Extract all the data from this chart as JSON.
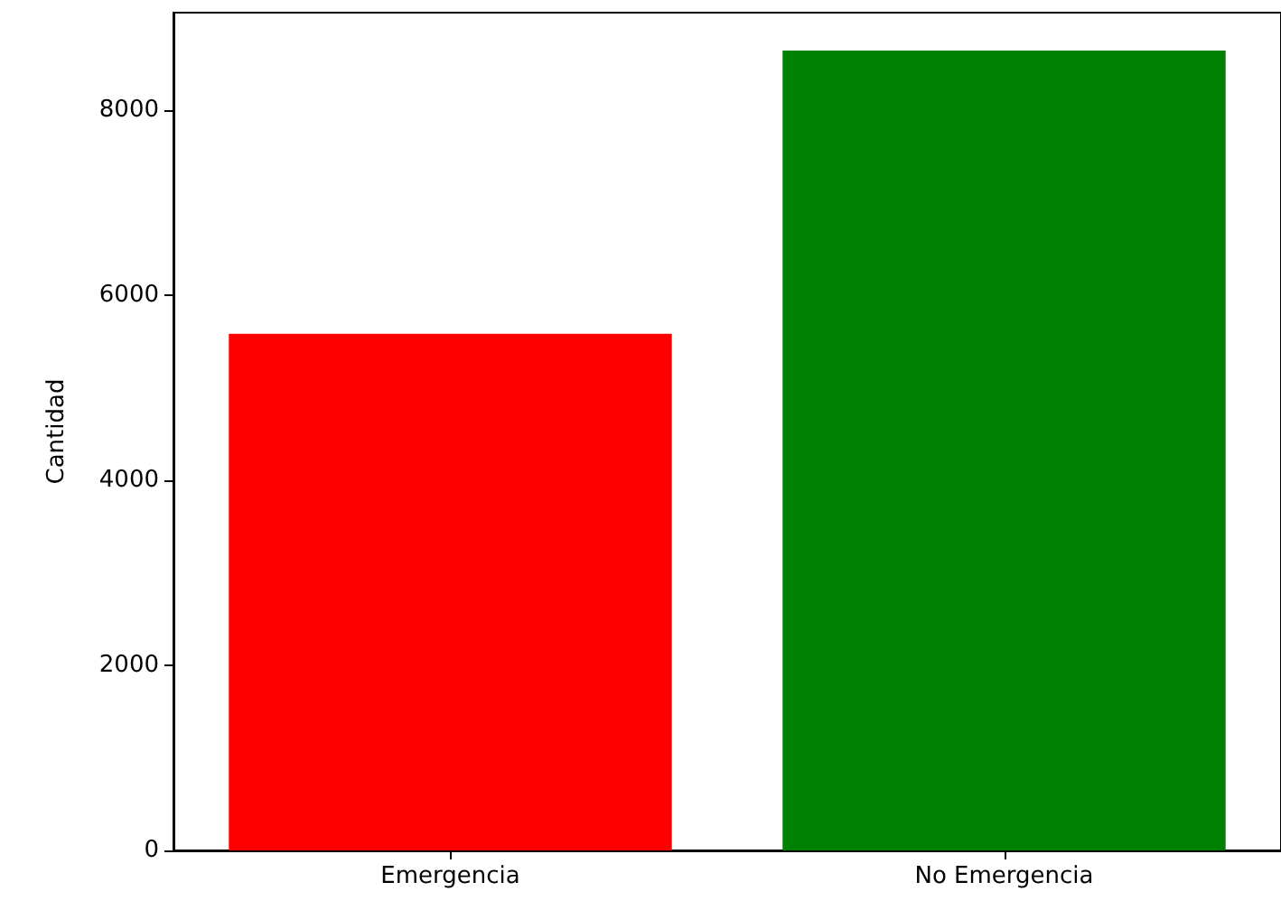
{
  "chart_data": {
    "type": "bar",
    "ylabel": "Cantidad",
    "categories": [
      "Emergencia",
      "No Emergencia"
    ],
    "values": [
      5580,
      8640
    ],
    "colors": [
      "#ff0000",
      "#008000"
    ],
    "ylim": [
      0,
      9050
    ],
    "yticks": [
      0,
      2000,
      4000,
      6000,
      8000
    ],
    "grid": false
  }
}
